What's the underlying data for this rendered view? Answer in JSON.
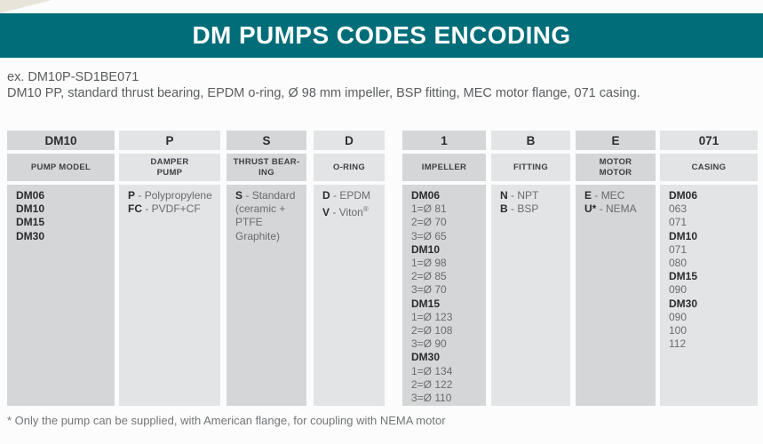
{
  "page": {
    "title": "DM PUMPS CODES ENCODING",
    "example_code": "ex. DM10P-SD1BE071",
    "example_description": "DM10 PP, standard thrust bearing, EPDM o-ring, Ø 98 mm impeller, BSP fitting, MEC motor flange, 071 casing.",
    "footnote": "* Only the pump can be supplied, with American flange, for coupling with NEMA motor"
  },
  "colors": {
    "teal": "#006d79",
    "cell_dark": "#d4d6d8",
    "cell_light": "#e2e4e5"
  },
  "table": {
    "columns": [
      {
        "key": "pump-model",
        "code": "DM10",
        "label": "PUMP MODEL",
        "values": [
          {
            "b": "DM06"
          },
          {
            "b": "DM10"
          },
          {
            "b": "DM15"
          },
          {
            "b": "DM30"
          }
        ]
      },
      {
        "key": "damper-pump",
        "code": "P",
        "label": "DAMPER\nPUMP",
        "values": [
          {
            "b": "P",
            "t": "Polypropylene"
          },
          {
            "b": "FC",
            "t": "PVDF+CF"
          }
        ]
      },
      {
        "key": "thrust-bearing",
        "code": "S",
        "label": "THRUST BEAR-\nING",
        "values": [
          {
            "b": "S",
            "t": "Standard"
          },
          {
            "t": "(ceramic +"
          },
          {
            "t": "PTFE Graphite)"
          }
        ]
      },
      {
        "key": "o-ring",
        "code": "D",
        "label": "O-RING",
        "values": [
          {
            "b": "D",
            "t": "EPDM"
          },
          {
            "b": "V",
            "t": "Viton®"
          }
        ]
      },
      {
        "key": "impeller",
        "code": "1",
        "label": "IMPELLER",
        "values": [
          {
            "b": "DM06"
          },
          {
            "t": "1=Ø 81"
          },
          {
            "t": "2=Ø 70"
          },
          {
            "t": "3=Ø 65"
          },
          {
            "b": "DM10"
          },
          {
            "t": "1=Ø 98"
          },
          {
            "t": "2=Ø 85"
          },
          {
            "t": "3=Ø 70"
          },
          {
            "b": "DM15"
          },
          {
            "t": "1=Ø 123"
          },
          {
            "t": "2=Ø 108"
          },
          {
            "t": "3=Ø 90"
          },
          {
            "b": "DM30"
          },
          {
            "t": "1=Ø 134"
          },
          {
            "t": "2=Ø 122"
          },
          {
            "t": "3=Ø 110"
          }
        ]
      },
      {
        "key": "fitting",
        "code": "B",
        "label": "FITTING",
        "values": [
          {
            "b": "N",
            "t": "NPT"
          },
          {
            "b": "B",
            "t": "BSP"
          }
        ]
      },
      {
        "key": "motor",
        "code": "E",
        "label": "MOTOR\nMOTOR",
        "values": [
          {
            "b": "E",
            "t": "MEC"
          },
          {
            "b": "U*",
            "t": "NEMA"
          }
        ]
      },
      {
        "key": "casing",
        "code": "071",
        "label": "CASING",
        "values": [
          {
            "b": "DM06"
          },
          {
            "t": "063"
          },
          {
            "t": "071"
          },
          {
            "b": "DM10"
          },
          {
            "t": "071"
          },
          {
            "t": "080"
          },
          {
            "b": "DM15"
          },
          {
            "t": "090"
          },
          {
            "b": "DM30"
          },
          {
            "t": "090"
          },
          {
            "t": "100"
          },
          {
            "t": "112"
          }
        ]
      }
    ]
  }
}
